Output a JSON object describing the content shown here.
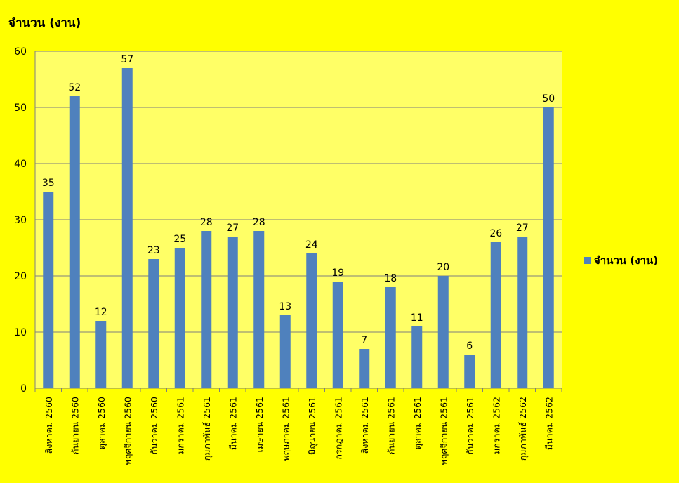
{
  "chart_data": {
    "type": "bar",
    "ylabel": "จำนวน (งาน)",
    "xlabel": "",
    "ylim": [
      0,
      60
    ],
    "yticks": [
      0,
      10,
      20,
      30,
      40,
      50,
      60
    ],
    "grid": true,
    "legend_position": "right",
    "colors": {
      "background": "#FFFF00",
      "plot_area": "#FFFF66",
      "bar": "#4F81BD",
      "grid": "#7F7F7F"
    },
    "categories": [
      "สิงหาคม 2560",
      "กันยายน 2560",
      "ตุลาคม 2560",
      "พฤศจิกายน 2560",
      "ธันวาคม 2560",
      "มกราคม 2561",
      "กุมภาพันธ์ 2561",
      "มีนาคม 2561",
      "เมษายน 2561",
      "พฤษภาคม 2561",
      "มิถุนายน 2561",
      "กรกฎาคม 2561",
      "สิงหาคม 2561",
      "กันยายน 2561",
      "ตุลาคม 2561",
      "พฤศจิกายน 2561",
      "ธันวาคม 2561",
      "มกราคม 2562",
      "กุมภาพันธ์ 2562",
      "มีนาคม 2562"
    ],
    "series": [
      {
        "name": "จำนวน (งาน)",
        "values": [
          35,
          52,
          12,
          57,
          23,
          25,
          28,
          27,
          28,
          13,
          24,
          19,
          7,
          18,
          11,
          20,
          6,
          26,
          27,
          50
        ]
      }
    ]
  }
}
